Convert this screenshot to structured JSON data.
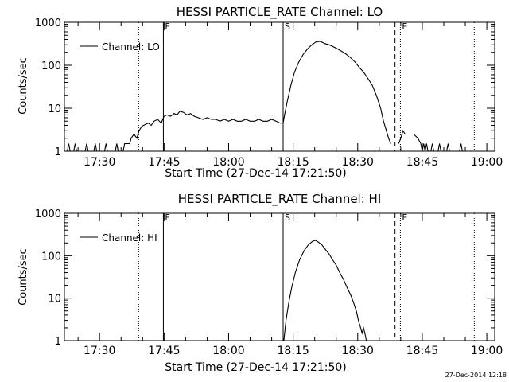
{
  "timestamp": "27-Dec-2014 12:18",
  "chart_data": [
    {
      "type": "line",
      "title": "HESSI PARTICLE_RATE Channel: LO",
      "xlabel": "Start Time (27-Dec-14 17:21:50)",
      "ylabel": "Counts/sec",
      "yscale": "log",
      "ylim": [
        1,
        1000
      ],
      "xlim": [
        "17:21:50",
        "19:01:50"
      ],
      "xticks": [
        "17:30",
        "17:45",
        "18:00",
        "18:15",
        "18:30",
        "18:45",
        "19:00"
      ],
      "yticks": [
        "1",
        "10",
        "100",
        "1000"
      ],
      "legend": "Channel: LO",
      "legend_position": "top-left",
      "markers": [
        {
          "time": "17:39:05",
          "style": "dotted",
          "label": ""
        },
        {
          "time": "17:44:50",
          "style": "solid",
          "label": "F"
        },
        {
          "time": "18:12:40",
          "style": "solid",
          "label": "S"
        },
        {
          "time": "18:38:40",
          "style": "dashed",
          "label": ""
        },
        {
          "time": "18:39:55",
          "style": "dotted",
          "label": "E"
        },
        {
          "time": "18:57:05",
          "style": "dotted",
          "label": ""
        }
      ],
      "series": [
        {
          "name": "Channel: LO",
          "segments": [
            [
              [
                "17:21:50",
                1
              ],
              [
                "17:22:30",
                1
              ],
              [
                "17:22:50",
                1.5
              ],
              [
                "17:23:10",
                1
              ],
              [
                "17:24:00",
                1
              ],
              [
                "17:24:20",
                1.5
              ],
              [
                "17:24:40",
                1
              ],
              [
                "17:26:40",
                1
              ],
              [
                "17:27:00",
                1.5
              ],
              [
                "17:27:20",
                1
              ],
              [
                "17:28:40",
                1
              ],
              [
                "17:29:00",
                1.5
              ],
              [
                "17:29:20",
                1
              ],
              [
                "17:31:10",
                1
              ],
              [
                "17:31:30",
                1.5
              ],
              [
                "17:31:50",
                1
              ],
              [
                "17:33:40",
                1
              ],
              [
                "17:34:00",
                1.5
              ],
              [
                "17:34:20",
                1
              ],
              [
                "17:35:30",
                1
              ],
              [
                "17:35:50",
                1.5
              ],
              [
                "17:37:00",
                1.5
              ],
              [
                "17:37:20",
                2
              ],
              [
                "17:38:00",
                2.5
              ],
              [
                "17:38:40",
                2
              ],
              [
                "17:39:10",
                3
              ],
              [
                "17:39:50",
                3.8
              ],
              [
                "17:40:40",
                4.2
              ],
              [
                "17:41:20",
                4.5
              ],
              [
                "17:42:00",
                4
              ],
              [
                "17:42:40",
                5
              ],
              [
                "17:43:30",
                5.5
              ],
              [
                "17:44:20",
                4.5
              ],
              [
                "17:45:00",
                6.5
              ],
              [
                "17:45:40",
                7
              ],
              [
                "17:46:30",
                6.5
              ],
              [
                "17:47:20",
                7.5
              ],
              [
                "17:48:00",
                7
              ],
              [
                "17:48:40",
                8.5
              ],
              [
                "17:49:30",
                8
              ],
              [
                "17:50:20",
                7
              ],
              [
                "17:51:10",
                7.5
              ],
              [
                "17:52:00",
                6.5
              ],
              [
                "17:53:00",
                6
              ],
              [
                "17:54:00",
                5.5
              ],
              [
                "17:55:00",
                6
              ],
              [
                "17:56:00",
                5.5
              ],
              [
                "17:57:00",
                5.5
              ],
              [
                "17:58:00",
                5
              ],
              [
                "17:59:00",
                5.5
              ],
              [
                "18:00:00",
                5
              ],
              [
                "18:01:00",
                5.5
              ],
              [
                "18:02:00",
                5
              ],
              [
                "18:03:00",
                5
              ],
              [
                "18:04:00",
                5.5
              ],
              [
                "18:05:00",
                5
              ],
              [
                "18:06:00",
                5
              ],
              [
                "18:07:00",
                5.5
              ],
              [
                "18:08:00",
                5
              ],
              [
                "18:09:00",
                5
              ],
              [
                "18:10:00",
                5.5
              ],
              [
                "18:11:00",
                5
              ],
              [
                "18:12:00",
                4.5
              ],
              [
                "18:12:40",
                4.5
              ],
              [
                "18:13:00",
                7
              ],
              [
                "18:13:40",
                15
              ],
              [
                "18:14:30",
                35
              ],
              [
                "18:15:20",
                70
              ],
              [
                "18:16:20",
                120
              ],
              [
                "18:17:20",
                180
              ],
              [
                "18:18:20",
                240
              ],
              [
                "18:19:20",
                300
              ],
              [
                "18:20:20",
                350
              ],
              [
                "18:21:20",
                360
              ],
              [
                "18:22:20",
                320
              ],
              [
                "18:23:20",
                300
              ],
              [
                "18:24:20",
                270
              ],
              [
                "18:25:20",
                240
              ],
              [
                "18:26:20",
                210
              ],
              [
                "18:27:20",
                180
              ],
              [
                "18:28:20",
                150
              ],
              [
                "18:29:20",
                120
              ],
              [
                "18:30:20",
                90
              ],
              [
                "18:31:20",
                70
              ],
              [
                "18:32:20",
                50
              ],
              [
                "18:33:20",
                35
              ],
              [
                "18:34:20",
                20
              ],
              [
                "18:35:20",
                10
              ],
              [
                "18:36:00",
                5
              ],
              [
                "18:36:40",
                3
              ],
              [
                "18:37:10",
                2
              ],
              [
                "18:37:40",
                1.5
              ]
            ],
            [
              [
                "18:39:30",
                1.5
              ],
              [
                "18:40:00",
                2
              ],
              [
                "18:40:30",
                3
              ],
              [
                "18:41:00",
                2.5
              ],
              [
                "18:42:00",
                2.5
              ],
              [
                "18:43:00",
                2.5
              ],
              [
                "18:44:00",
                2
              ],
              [
                "18:44:40",
                1.5
              ],
              [
                "18:45:00",
                1
              ],
              [
                "18:45:20",
                1.5
              ],
              [
                "18:45:40",
                1
              ],
              [
                "18:46:00",
                1.5
              ],
              [
                "18:46:20",
                1
              ],
              [
                "18:47:00",
                1
              ],
              [
                "18:47:20",
                1.5
              ],
              [
                "18:47:40",
                1
              ],
              [
                "18:48:40",
                1
              ],
              [
                "18:49:00",
                1.5
              ],
              [
                "18:49:20",
                1
              ],
              [
                "18:50:40",
                1
              ],
              [
                "18:51:00",
                1.5
              ],
              [
                "18:51:20",
                1
              ],
              [
                "18:53:40",
                1
              ],
              [
                "18:54:00",
                1.5
              ],
              [
                "18:54:20",
                1
              ]
            ]
          ]
        }
      ]
    },
    {
      "type": "line",
      "title": "HESSI PARTICLE_RATE Channel: HI",
      "xlabel": "Start Time (27-Dec-14 17:21:50)",
      "ylabel": "Counts/sec",
      "yscale": "log",
      "ylim": [
        1,
        1000
      ],
      "xlim": [
        "17:21:50",
        "19:01:50"
      ],
      "xticks": [
        "17:30",
        "17:45",
        "18:00",
        "18:15",
        "18:30",
        "18:45",
        "19:00"
      ],
      "yticks": [
        "1",
        "10",
        "100",
        "1000"
      ],
      "legend": "Channel: HI",
      "legend_position": "top-left",
      "markers": [
        {
          "time": "17:39:05",
          "style": "dotted",
          "label": ""
        },
        {
          "time": "17:44:50",
          "style": "solid",
          "label": "F"
        },
        {
          "time": "18:12:40",
          "style": "solid",
          "label": "S"
        },
        {
          "time": "18:38:40",
          "style": "dashed",
          "label": ""
        },
        {
          "time": "18:39:55",
          "style": "dotted",
          "label": "E"
        },
        {
          "time": "18:57:05",
          "style": "dotted",
          "label": ""
        }
      ],
      "series": [
        {
          "name": "Channel: HI",
          "segments": [
            [
              [
                "18:12:50",
                1
              ],
              [
                "18:13:20",
                3
              ],
              [
                "18:14:00",
                8
              ],
              [
                "18:14:40",
                18
              ],
              [
                "18:15:30",
                40
              ],
              [
                "18:16:30",
                80
              ],
              [
                "18:17:30",
                130
              ],
              [
                "18:18:30",
                180
              ],
              [
                "18:19:30",
                220
              ],
              [
                "18:20:10",
                230
              ],
              [
                "18:20:50",
                210
              ],
              [
                "18:21:40",
                180
              ],
              [
                "18:22:30",
                140
              ],
              [
                "18:23:20",
                110
              ],
              [
                "18:24:10",
                80
              ],
              [
                "18:25:00",
                60
              ],
              [
                "18:25:50",
                40
              ],
              [
                "18:26:40",
                28
              ],
              [
                "18:27:30",
                18
              ],
              [
                "18:28:20",
                12
              ],
              [
                "18:29:00",
                8
              ],
              [
                "18:29:40",
                5
              ],
              [
                "18:30:10",
                3
              ],
              [
                "18:30:40",
                2
              ],
              [
                "18:31:00",
                1.5
              ],
              [
                "18:31:20",
                2
              ],
              [
                "18:31:40",
                1.5
              ],
              [
                "18:32:00",
                1
              ]
            ]
          ]
        }
      ]
    }
  ]
}
